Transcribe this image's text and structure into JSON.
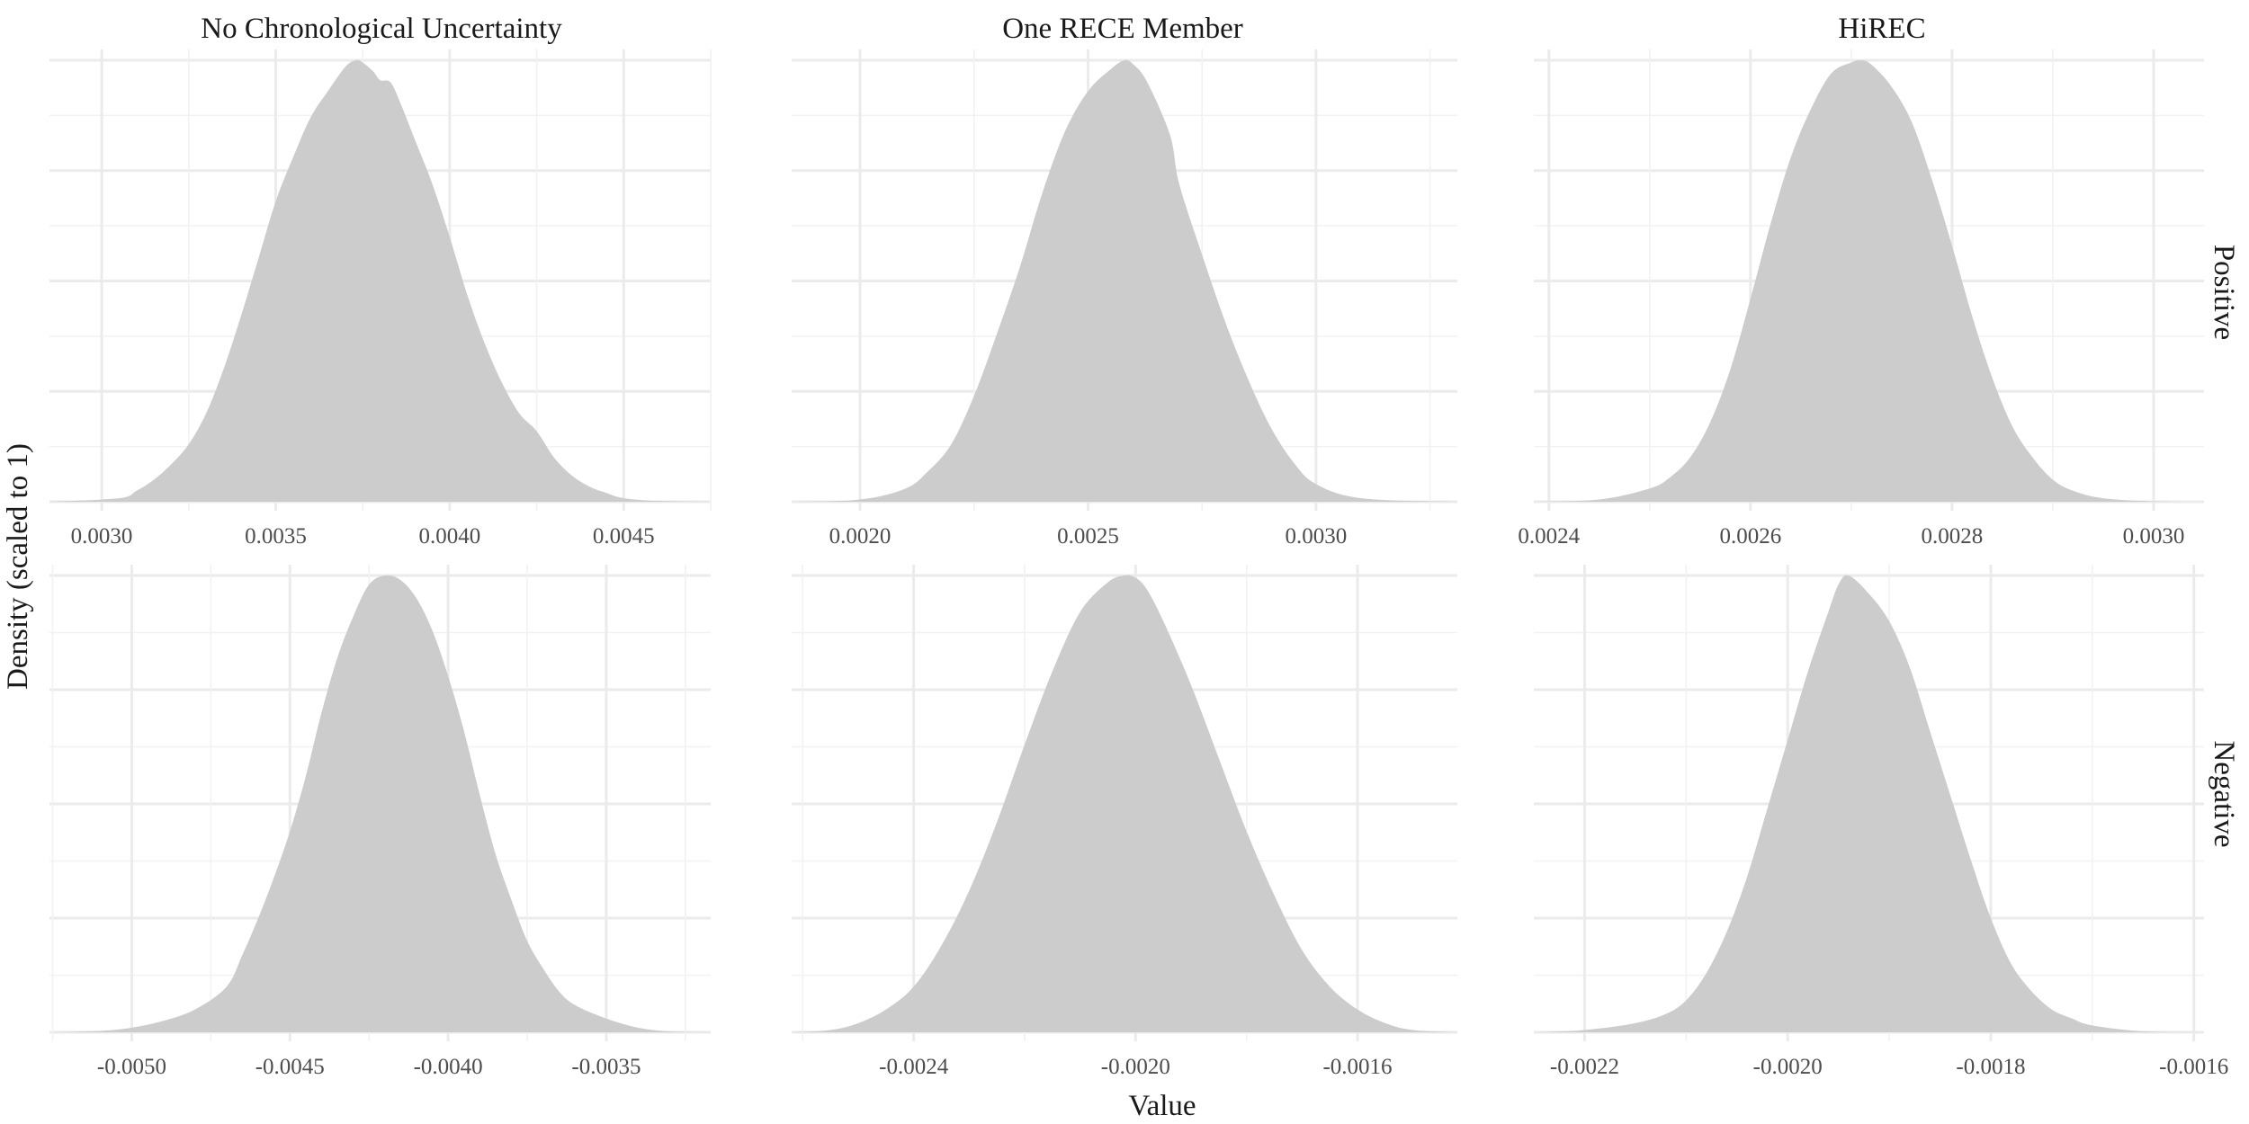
{
  "chart_data": {
    "type": "area",
    "layout": "facet_grid",
    "xlabel": "Value",
    "ylabel": "Density (scaled to 1)",
    "columns": [
      "No Chronological Uncertainty",
      "One RECE Member",
      "HiREC"
    ],
    "rows": [
      "Positive",
      "Negative"
    ],
    "grid": true,
    "fill_color": "#cccccc",
    "panels": [
      {
        "column": "No Chronological Uncertainty",
        "row": "Positive",
        "xlim": [
          0.00285,
          0.00475
        ],
        "ylim": [
          0,
          1
        ],
        "x_ticks": [
          0.003,
          0.0035,
          0.004,
          0.0045
        ],
        "x_tick_labels": [
          "0.0030",
          "0.0035",
          "0.0040",
          "0.0045"
        ],
        "x": [
          0.00285,
          0.00305,
          0.0031,
          0.00315,
          0.0032,
          0.00325,
          0.0033,
          0.00335,
          0.0034,
          0.00345,
          0.0035,
          0.00355,
          0.0036,
          0.00365,
          0.0037,
          0.00373,
          0.00375,
          0.00378,
          0.0038,
          0.00383,
          0.00386,
          0.0039,
          0.00395,
          0.004,
          0.00405,
          0.0041,
          0.00415,
          0.0042,
          0.00425,
          0.0043,
          0.00435,
          0.0044,
          0.00445,
          0.0045,
          0.0046,
          0.00475
        ],
        "y": [
          0.0,
          0.008,
          0.025,
          0.05,
          0.085,
          0.13,
          0.2,
          0.3,
          0.42,
          0.55,
          0.68,
          0.78,
          0.87,
          0.93,
          0.985,
          1.0,
          0.995,
          0.975,
          0.955,
          0.95,
          0.9,
          0.82,
          0.72,
          0.6,
          0.47,
          0.36,
          0.27,
          0.2,
          0.16,
          0.1,
          0.06,
          0.035,
          0.02,
          0.008,
          0.002,
          0.0
        ]
      },
      {
        "column": "One RECE Member",
        "row": "Positive",
        "xlim": [
          0.00185,
          0.00331
        ],
        "ylim": [
          0,
          1
        ],
        "x_ticks": [
          0.002,
          0.0025,
          0.003
        ],
        "x_tick_labels": [
          "0.0020",
          "0.0025",
          "0.0030"
        ],
        "x": [
          0.00185,
          0.002,
          0.0021,
          0.00215,
          0.0022,
          0.00225,
          0.0023,
          0.00235,
          0.0024,
          0.00245,
          0.0025,
          0.00255,
          0.00258,
          0.0026,
          0.00263,
          0.00268,
          0.0027,
          0.00275,
          0.0028,
          0.00285,
          0.0029,
          0.00295,
          0.003,
          0.0031,
          0.00331
        ],
        "y": [
          0.0,
          0.005,
          0.03,
          0.07,
          0.13,
          0.24,
          0.38,
          0.53,
          0.7,
          0.84,
          0.93,
          0.98,
          1.0,
          0.99,
          0.95,
          0.83,
          0.72,
          0.56,
          0.41,
          0.28,
          0.17,
          0.09,
          0.04,
          0.008,
          0.0
        ]
      },
      {
        "column": "HiREC",
        "row": "Positive",
        "xlim": [
          0.002385,
          0.00305
        ],
        "ylim": [
          0,
          1
        ],
        "x_ticks": [
          0.0024,
          0.0026,
          0.0028,
          0.003
        ],
        "x_tick_labels": [
          "0.0024",
          "0.0026",
          "0.0028",
          "0.0030"
        ],
        "x": [
          0.002385,
          0.00245,
          0.0025,
          0.00252,
          0.00254,
          0.00256,
          0.00258,
          0.0026,
          0.00262,
          0.00264,
          0.00266,
          0.00268,
          0.0027,
          0.00271,
          0.00272,
          0.00274,
          0.00276,
          0.00278,
          0.0028,
          0.00282,
          0.00284,
          0.00286,
          0.00288,
          0.0029,
          0.00292,
          0.00295,
          0.003,
          0.00305
        ],
        "y": [
          0.0,
          0.005,
          0.03,
          0.055,
          0.1,
          0.18,
          0.3,
          0.46,
          0.63,
          0.78,
          0.89,
          0.97,
          0.995,
          1.0,
          0.99,
          0.94,
          0.86,
          0.73,
          0.58,
          0.42,
          0.28,
          0.17,
          0.1,
          0.05,
          0.025,
          0.008,
          0.001,
          0.0
        ]
      },
      {
        "column": "No Chronological Uncertainty",
        "row": "Negative",
        "xlim": [
          -0.00526,
          -0.00317
        ],
        "ylim": [
          0,
          1
        ],
        "x_ticks": [
          -0.005,
          -0.0045,
          -0.004,
          -0.0035
        ],
        "x_tick_labels": [
          "-0.0050",
          "-0.0045",
          "-0.0040",
          "-0.0035"
        ],
        "x": [
          -0.00526,
          -0.0051,
          -0.005,
          -0.0049,
          -0.0048,
          -0.0047,
          -0.00465,
          -0.0046,
          -0.00455,
          -0.0045,
          -0.00445,
          -0.0044,
          -0.00435,
          -0.0043,
          -0.00425,
          -0.0042,
          -0.00415,
          -0.0041,
          -0.00405,
          -0.004,
          -0.00395,
          -0.0039,
          -0.00385,
          -0.0038,
          -0.00375,
          -0.0037,
          -0.00365,
          -0.0036,
          -0.0035,
          -0.0034,
          -0.0033,
          -0.00317
        ],
        "y": [
          0.0,
          0.003,
          0.01,
          0.025,
          0.05,
          0.1,
          0.17,
          0.25,
          0.34,
          0.44,
          0.56,
          0.7,
          0.82,
          0.91,
          0.98,
          1.0,
          0.99,
          0.95,
          0.88,
          0.78,
          0.66,
          0.52,
          0.39,
          0.29,
          0.2,
          0.14,
          0.09,
          0.06,
          0.03,
          0.01,
          0.002,
          0.0
        ]
      },
      {
        "column": "One RECE Member",
        "row": "Negative",
        "xlim": [
          -0.00262,
          -0.00142
        ],
        "ylim": [
          0,
          1
        ],
        "x_ticks": [
          -0.0024,
          -0.002,
          -0.0016
        ],
        "x_tick_labels": [
          "-0.0024",
          "-0.0020",
          "-0.0016"
        ],
        "x": [
          -0.00262,
          -0.00255,
          -0.0025,
          -0.00245,
          -0.0024,
          -0.00235,
          -0.0023,
          -0.00225,
          -0.0022,
          -0.00215,
          -0.0021,
          -0.00205,
          -0.00202,
          -0.002,
          -0.00198,
          -0.00195,
          -0.0019,
          -0.00185,
          -0.0018,
          -0.00175,
          -0.0017,
          -0.00165,
          -0.0016,
          -0.00155,
          -0.0015,
          -0.00142
        ],
        "y": [
          0.0,
          0.005,
          0.02,
          0.05,
          0.1,
          0.19,
          0.31,
          0.46,
          0.63,
          0.79,
          0.92,
          0.985,
          1.0,
          0.995,
          0.97,
          0.9,
          0.76,
          0.6,
          0.44,
          0.3,
          0.18,
          0.1,
          0.05,
          0.02,
          0.005,
          0.0
        ]
      },
      {
        "column": "HiREC",
        "row": "Negative",
        "xlim": [
          -0.00225,
          -0.00159
        ],
        "ylim": [
          0,
          1
        ],
        "x_ticks": [
          -0.0022,
          -0.002,
          -0.0018,
          -0.0016
        ],
        "x_tick_labels": [
          "-0.0022",
          "-0.0020",
          "-0.0018",
          "-0.0016"
        ],
        "x": [
          -0.00225,
          -0.0022,
          -0.00215,
          -0.00212,
          -0.0021,
          -0.00208,
          -0.00206,
          -0.00204,
          -0.00202,
          -0.002,
          -0.00198,
          -0.00196,
          -0.00195,
          -0.00194,
          -0.00192,
          -0.0019,
          -0.00188,
          -0.00186,
          -0.00184,
          -0.00182,
          -0.0018,
          -0.00178,
          -0.00176,
          -0.00174,
          -0.00172,
          -0.0017,
          -0.00165,
          -0.00159
        ],
        "y": [
          0.0,
          0.005,
          0.02,
          0.04,
          0.07,
          0.13,
          0.22,
          0.34,
          0.49,
          0.64,
          0.79,
          0.92,
          0.98,
          1.0,
          0.96,
          0.9,
          0.8,
          0.66,
          0.52,
          0.38,
          0.25,
          0.15,
          0.09,
          0.05,
          0.03,
          0.015,
          0.002,
          0.0
        ]
      }
    ]
  }
}
